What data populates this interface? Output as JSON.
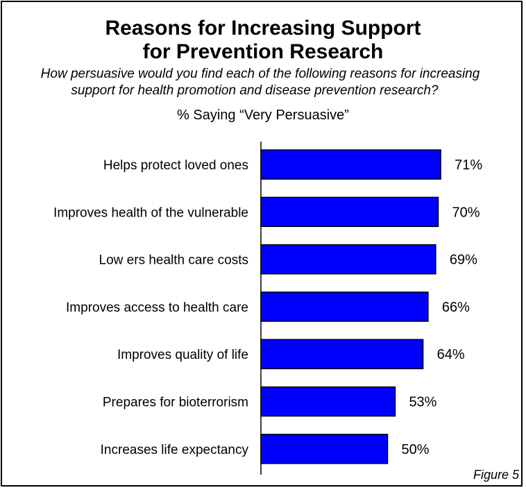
{
  "figure": {
    "title_line1": "Reasons for Increasing Support",
    "title_line2": "for Prevention Research",
    "question_line1": "How persuasive would you find each of the following reasons for increasing",
    "question_line2": "support for health promotion and disease prevention research?",
    "measure_label": "% Saying “Very Persuasive”",
    "figure_label": "Figure 5"
  },
  "chart_data": {
    "type": "bar",
    "orientation": "horizontal",
    "title": "Reasons for Increasing Support for Prevention Research",
    "subtitle": "% Saying “Very Persuasive”",
    "categories": [
      "Helps protect loved ones",
      "Improves health of the vulnerable",
      "Low ers health care costs",
      "Improves access to health care",
      "Improves quality of life",
      "Prepares for bioterrorism",
      "Increases life expectancy"
    ],
    "values": [
      71,
      70,
      69,
      66,
      64,
      53,
      50
    ],
    "value_labels": [
      "71%",
      "70%",
      "69%",
      "66%",
      "64%",
      "53%",
      "50%"
    ],
    "xlim": [
      0,
      100
    ],
    "grid": false,
    "legend": "none",
    "bar_color": "#0000FF",
    "bar_edge_color": "#000000"
  }
}
